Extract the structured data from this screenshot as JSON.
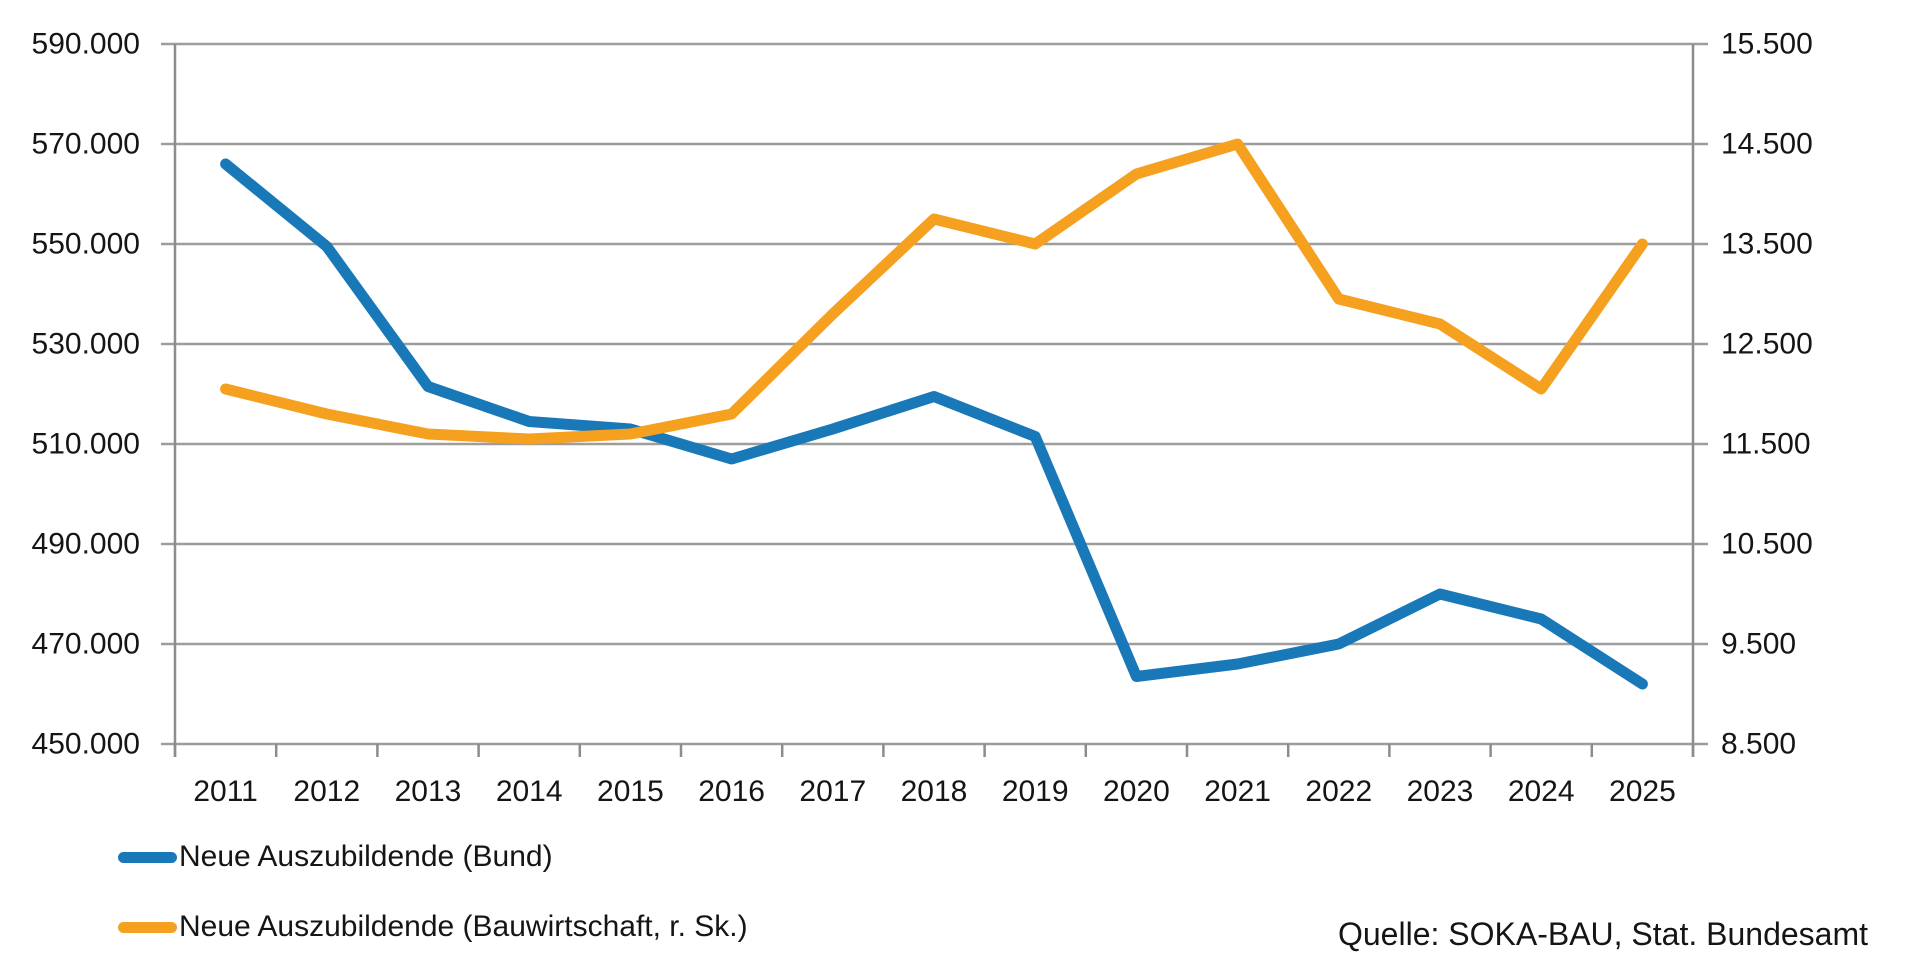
{
  "chart_data": {
    "type": "line",
    "title": "",
    "categories": [
      "2011",
      "2012",
      "2013",
      "2014",
      "2015",
      "2016",
      "2017",
      "2018",
      "2019",
      "2020",
      "2021",
      "2022",
      "2023",
      "2024",
      "2025"
    ],
    "series": [
      {
        "name": "Neue Auszubildende (Bund)",
        "axis": "left",
        "color": "#1878B8",
        "values": [
          566000,
          549500,
          521500,
          514500,
          513000,
          507000,
          513000,
          519500,
          511500,
          463500,
          466000,
          470000,
          480000,
          475000,
          462000
        ]
      },
      {
        "name": "Neue Auszubildende (Bauwirtschaft, r. Sk.)",
        "axis": "right",
        "color": "#F5A01E",
        "values": [
          12050,
          11800,
          11600,
          11550,
          11600,
          11800,
          12800,
          13750,
          13500,
          14200,
          14500,
          12950,
          12700,
          12050,
          13500
        ]
      }
    ],
    "left_axis": {
      "min": 450000,
      "max": 590000,
      "step": 20000,
      "tick_labels": [
        "590.000",
        "570.000",
        "550.000",
        "530.000",
        "510.000",
        "490.000",
        "470.000",
        "450.000"
      ]
    },
    "right_axis": {
      "min": 8500,
      "max": 15500,
      "step": 1000,
      "tick_labels": [
        "15.500",
        "14.500",
        "13.500",
        "12.500",
        "11.500",
        "10.500",
        "9.500",
        "8.500"
      ]
    },
    "grid": true,
    "legend_position": "bottom-left"
  },
  "legend": {
    "items": [
      {
        "label": "Neue Auszubildende (Bund)",
        "color": "#1878B8"
      },
      {
        "label": "Neue Auszubildende (Bauwirtschaft, r. Sk.)",
        "color": "#F5A01E"
      }
    ]
  },
  "source_note": "Quelle: SOKA-BAU, Stat. Bundesamt",
  "colors": {
    "series_blue": "#1878B8",
    "series_orange": "#F5A01E",
    "gridline": "#9D9D9D",
    "axis": "#8C8C8C",
    "text": "#151515",
    "background": "#FFFFFF"
  }
}
